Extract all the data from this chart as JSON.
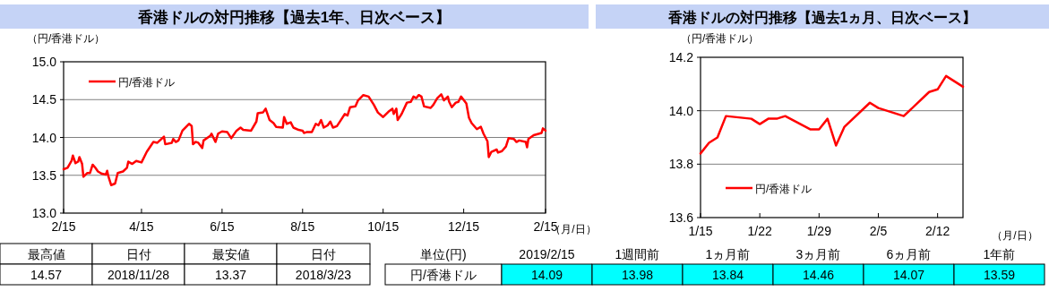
{
  "chart_data": [
    {
      "type": "line",
      "title": "香港ドルの対円推移【過去1年、日次ベース】",
      "ylabel": "（円/香港ドル）",
      "xlabel": "（月/日）",
      "x": [
        "2018-02-15",
        "2018-02-18",
        "2018-02-21",
        "2018-02-22",
        "2018-02-24",
        "2018-02-26",
        "2018-02-27",
        "2018-03-01",
        "2018-03-02",
        "2018-03-05",
        "2018-03-07",
        "2018-03-09",
        "2018-03-11",
        "2018-03-13",
        "2018-03-16",
        "2018-03-19",
        "2018-03-20",
        "2018-03-21",
        "2018-03-23",
        "2018-03-26",
        "2018-03-28",
        "2018-04-01",
        "2018-04-04",
        "2018-04-05",
        "2018-04-08",
        "2018-04-11",
        "2018-04-15",
        "2018-04-19",
        "2018-04-24",
        "2018-04-27",
        "2018-05-02",
        "2018-05-03",
        "2018-05-08",
        "2018-05-09",
        "2018-05-11",
        "2018-05-13",
        "2018-05-16",
        "2018-05-21",
        "2018-05-23",
        "2018-05-24",
        "2018-05-26",
        "2018-05-28",
        "2018-05-31",
        "2018-06-01",
        "2018-06-06",
        "2018-06-07",
        "2018-06-10",
        "2018-06-12",
        "2018-06-15",
        "2018-06-19",
        "2018-06-22",
        "2018-06-26",
        "2018-06-29",
        "2018-07-01",
        "2018-07-07",
        "2018-07-11",
        "2018-07-12",
        "2018-07-16",
        "2018-07-18",
        "2018-07-21",
        "2018-07-24",
        "2018-07-26",
        "2018-07-31",
        "2018-08-01",
        "2018-08-03",
        "2018-08-06",
        "2018-08-08",
        "2018-08-12",
        "2018-08-15",
        "2018-08-16",
        "2018-08-18",
        "2018-08-22",
        "2018-08-25",
        "2018-08-27",
        "2018-08-29",
        "2018-08-31",
        "2018-09-03",
        "2018-09-05",
        "2018-09-07",
        "2018-09-10",
        "2018-09-13",
        "2018-09-16",
        "2018-09-18",
        "2018-09-20",
        "2018-09-24",
        "2018-09-26",
        "2018-09-30",
        "2018-10-04",
        "2018-10-08",
        "2018-10-11",
        "2018-10-15",
        "2018-10-19",
        "2018-10-22",
        "2018-10-23",
        "2018-10-25",
        "2018-10-26",
        "2018-10-29",
        "2018-11-02",
        "2018-11-05",
        "2018-11-07",
        "2018-11-09",
        "2018-11-11",
        "2018-11-13",
        "2018-11-15",
        "2018-11-20",
        "2018-11-22",
        "2018-11-25",
        "2018-11-28",
        "2018-11-30",
        "2018-12-03",
        "2018-12-04",
        "2018-12-06",
        "2018-12-09",
        "2018-12-11",
        "2018-12-13",
        "2018-12-17",
        "2018-12-19",
        "2018-12-21",
        "2018-12-25",
        "2018-12-28",
        "2018-12-30",
        "2019-01-02",
        "2019-01-03",
        "2019-01-05",
        "2019-01-09",
        "2019-01-10",
        "2019-01-13",
        "2019-01-16",
        "2019-01-18",
        "2019-01-22",
        "2019-01-24",
        "2019-01-26",
        "2019-01-31",
        "2019-02-01",
        "2019-02-02",
        "2019-02-06",
        "2019-02-12",
        "2019-02-13",
        "2019-02-15"
      ],
      "series": [
        {
          "name": "円/香港ドル",
          "color": "#ff0000",
          "values": [
            13.58,
            13.6,
            13.69,
            13.76,
            13.66,
            13.68,
            13.74,
            13.65,
            13.48,
            13.53,
            13.53,
            13.64,
            13.6,
            13.55,
            13.52,
            13.51,
            13.56,
            13.48,
            13.37,
            13.39,
            13.53,
            13.55,
            13.6,
            13.68,
            13.65,
            13.69,
            13.67,
            13.81,
            13.94,
            13.93,
            14.01,
            13.91,
            13.93,
            13.98,
            13.94,
            13.96,
            14.09,
            14.18,
            14.15,
            13.91,
            13.94,
            13.93,
            13.86,
            13.96,
            14.02,
            14.05,
            13.94,
            14.05,
            14.08,
            14.07,
            13.99,
            14.09,
            14.13,
            14.1,
            14.09,
            14.21,
            14.32,
            14.33,
            14.38,
            14.23,
            14.19,
            14.14,
            14.13,
            14.27,
            14.18,
            14.2,
            14.13,
            14.1,
            14.09,
            14.06,
            14.07,
            14.07,
            14.18,
            14.16,
            14.23,
            14.13,
            14.16,
            14.21,
            14.13,
            14.15,
            14.23,
            14.31,
            14.29,
            14.4,
            14.41,
            14.49,
            14.56,
            14.54,
            14.43,
            14.33,
            14.27,
            14.34,
            14.38,
            14.31,
            14.38,
            14.23,
            14.31,
            14.46,
            14.47,
            14.54,
            14.52,
            14.56,
            14.54,
            14.41,
            14.39,
            14.43,
            14.52,
            14.57,
            14.49,
            14.54,
            14.47,
            14.4,
            14.46,
            14.47,
            14.54,
            14.45,
            14.26,
            14.19,
            14.11,
            14.14,
            14.05,
            13.95,
            13.74,
            13.81,
            13.84,
            13.8,
            13.82,
            13.88,
            13.99,
            13.98,
            13.94,
            13.96,
            13.94,
            13.87,
            13.98,
            14.03,
            14.06,
            14.12,
            14.09
          ]
        }
      ],
      "xlim": [
        "2018-02-15",
        "2019-02-15"
      ],
      "xticks": [
        {
          "value": "2018-02-15",
          "label": "2/15"
        },
        {
          "value": "2018-04-15",
          "label": "4/15"
        },
        {
          "value": "2018-06-15",
          "label": "6/15"
        },
        {
          "value": "2018-08-15",
          "label": "8/15"
        },
        {
          "value": "2018-10-15",
          "label": "10/15"
        },
        {
          "value": "2018-12-15",
          "label": "12/15"
        },
        {
          "value": "2019-02-15",
          "label": "2/15"
        }
      ],
      "ylim": [
        13.0,
        15.0
      ],
      "yticks": [
        {
          "value": 13.0,
          "label": "13.0"
        },
        {
          "value": 13.5,
          "label": "13.5"
        },
        {
          "value": 14.0,
          "label": "14.0"
        },
        {
          "value": 14.5,
          "label": "14.5"
        },
        {
          "value": 15.0,
          "label": "15.0"
        }
      ],
      "grid": "y",
      "legend": "top left"
    },
    {
      "type": "line",
      "title": "香港ドルの対円推移【過去1ヵ月、日次ベース】",
      "ylabel": "（円/香港ドル）",
      "xlabel": "（月/日）",
      "x": [
        "2019-01-15",
        "2019-01-16",
        "2019-01-17",
        "2019-01-18",
        "2019-01-21",
        "2019-01-22",
        "2019-01-23",
        "2019-01-24",
        "2019-01-25",
        "2019-01-28",
        "2019-01-29",
        "2019-01-30",
        "2019-01-31",
        "2019-02-01",
        "2019-02-04",
        "2019-02-05",
        "2019-02-07",
        "2019-02-08",
        "2019-02-11",
        "2019-02-12",
        "2019-02-13",
        "2019-02-14",
        "2019-02-15"
      ],
      "series": [
        {
          "name": "円/香港ドル",
          "color": "#ff0000",
          "values": [
            13.84,
            13.88,
            13.9,
            13.98,
            13.97,
            13.95,
            13.97,
            13.97,
            13.98,
            13.93,
            13.93,
            13.97,
            13.87,
            13.94,
            14.03,
            14.01,
            13.99,
            13.98,
            14.07,
            14.08,
            14.13,
            14.11,
            14.09
          ]
        }
      ],
      "xlim": [
        "2019-01-15",
        "2019-02-15"
      ],
      "xticks": [
        {
          "value": "2019-01-15",
          "label": "1/15"
        },
        {
          "value": "2019-01-22",
          "label": "1/22"
        },
        {
          "value": "2019-01-29",
          "label": "1/29"
        },
        {
          "value": "2019-02-05",
          "label": "2/5"
        },
        {
          "value": "2019-02-12",
          "label": "2/12"
        }
      ],
      "ylim": [
        13.6,
        14.2
      ],
      "yticks": [
        {
          "value": 13.6,
          "label": "13.6"
        },
        {
          "value": 13.8,
          "label": "13.8"
        },
        {
          "value": 14.0,
          "label": "14.0"
        },
        {
          "value": 14.2,
          "label": "14.2"
        }
      ],
      "grid": "y",
      "legend": "bottom left"
    },
    {
      "type": "other",
      "categories": [
        "最高値",
        "日付",
        "最安値",
        "日付"
      ],
      "value_labels": [
        "14.57",
        "2018/11/28",
        "13.37",
        "2018/3/23"
      ]
    },
    {
      "type": "other",
      "categories": [
        "単位(円)",
        "2019/2/15",
        "1週間前",
        "1ヵ月前",
        "3ヵ月前",
        "6ヵ月前",
        "1年前"
      ],
      "value_labels": [
        "円/香港ドル",
        "14.09",
        "13.98",
        "13.84",
        "14.46",
        "14.07",
        "13.59"
      ]
    }
  ]
}
